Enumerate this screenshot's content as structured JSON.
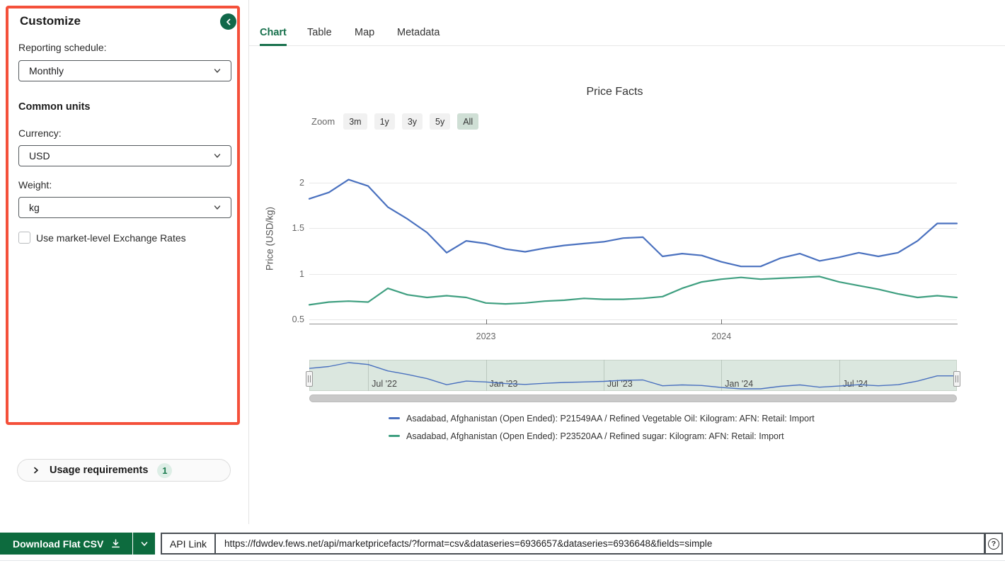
{
  "sidebar": {
    "title": "Customize",
    "reporting_schedule_label": "Reporting schedule:",
    "reporting_schedule_value": "Monthly",
    "common_units_heading": "Common units",
    "currency_label": "Currency:",
    "currency_value": "USD",
    "weight_label": "Weight:",
    "weight_value": "kg",
    "exchange_rates_checkbox_label": "Use market-level Exchange Rates",
    "exchange_rates_checked": false,
    "usage_requirements": {
      "label": "Usage requirements",
      "badge": "1"
    }
  },
  "tabs": [
    {
      "label": "Chart",
      "active": true
    },
    {
      "label": "Table",
      "active": false
    },
    {
      "label": "Map",
      "active": false
    },
    {
      "label": "Metadata",
      "active": false
    }
  ],
  "chart_data": {
    "type": "line",
    "title": "Price Facts",
    "ylabel": "Price (USD/kg)",
    "ylim": [
      0.5,
      2.1
    ],
    "yticks": [
      0.5,
      1,
      1.5,
      2
    ],
    "grid": true,
    "legend_position": "bottom-left",
    "zoom": {
      "label": "Zoom",
      "options": [
        "3m",
        "1y",
        "3y",
        "5y",
        "All"
      ],
      "selected": "All"
    },
    "categories": [
      "Apr 2022",
      "May 2022",
      "Jun 2022",
      "Jul 2022",
      "Aug 2022",
      "Sep 2022",
      "Oct 2022",
      "Nov 2022",
      "Dec 2022",
      "Jan 2023",
      "Feb 2023",
      "Mar 2023",
      "Apr 2023",
      "May 2023",
      "Jun 2023",
      "Jul 2023",
      "Aug 2023",
      "Sep 2023",
      "Oct 2023",
      "Nov 2023",
      "Dec 2023",
      "Jan 2024",
      "Feb 2024",
      "Mar 2024",
      "Apr 2024",
      "May 2024",
      "Jun 2024",
      "Jul 2024",
      "Aug 2024",
      "Sep 2024",
      "Oct 2024",
      "Nov 2024",
      "Dec 2024",
      "Jan 2025"
    ],
    "xticks": [
      {
        "label": "2023",
        "month_index": 9
      },
      {
        "label": "2024",
        "month_index": 21
      }
    ],
    "series": [
      {
        "name": "Asadabad, Afghanistan (Open Ended): P21549AA / Refined Vegetable Oil: Kilogram: AFN: Retail: Import",
        "color": "#4a71bf",
        "values": [
          1.82,
          1.89,
          2.03,
          1.96,
          1.73,
          1.6,
          1.45,
          1.23,
          1.36,
          1.33,
          1.27,
          1.24,
          1.28,
          1.31,
          1.33,
          1.35,
          1.39,
          1.4,
          1.19,
          1.22,
          1.2,
          1.13,
          1.08,
          1.08,
          1.17,
          1.22,
          1.14,
          1.18,
          1.23,
          1.19,
          1.23,
          1.36,
          1.55,
          1.55
        ]
      },
      {
        "name": "Asadabad, Afghanistan (Open Ended): P23520AA / Refined sugar: Kilogram: AFN: Retail: Import",
        "color": "#3f9f80",
        "values": [
          0.66,
          0.69,
          0.7,
          0.69,
          0.84,
          0.77,
          0.74,
          0.76,
          0.74,
          0.68,
          0.67,
          0.68,
          0.7,
          0.71,
          0.73,
          0.72,
          0.72,
          0.73,
          0.75,
          0.84,
          0.91,
          0.94,
          0.96,
          0.94,
          0.95,
          0.96,
          0.97,
          0.91,
          0.87,
          0.83,
          0.78,
          0.74,
          0.76,
          0.74
        ]
      }
    ],
    "navigator_ticks": [
      {
        "label": "Jul '22",
        "month_index": 3
      },
      {
        "label": "Jan '23",
        "month_index": 9
      },
      {
        "label": "Jul '23",
        "month_index": 15
      },
      {
        "label": "Jan '24",
        "month_index": 21
      },
      {
        "label": "Jul '24",
        "month_index": 27
      }
    ]
  },
  "footer": {
    "download_button": "Download Flat CSV",
    "api_link_label": "API Link",
    "api_url": "https://fdwdev.fews.net/api/marketpricefacts/?format=csv&dataseries=6936657&dataseries=6936648&fields=simple"
  },
  "colors": {
    "brand_green": "#0d6b3e",
    "accent_green": "#17704c",
    "annotation_red": "#f4503a",
    "navigator_bg": "#dbe7df",
    "zoom_selected_bg": "#cfdfd5",
    "series_blue": "#4a71bf",
    "series_green": "#3f9f80"
  }
}
